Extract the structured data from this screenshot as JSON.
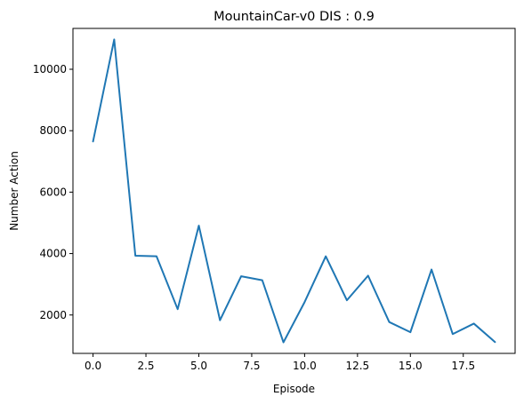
{
  "chart_data": {
    "type": "line",
    "title": "MountainCar-v0 DIS : 0.9",
    "xlabel": "Episode",
    "ylabel": "Number Action",
    "xlim": [
      -0.95,
      19.95
    ],
    "ylim": [
      750,
      11330
    ],
    "xticks": [
      0.0,
      2.5,
      5.0,
      7.5,
      10.0,
      12.5,
      15.0,
      17.5
    ],
    "xtick_labels": [
      "0.0",
      "2.5",
      "5.0",
      "7.5",
      "10.0",
      "12.5",
      "15.0",
      "17.5"
    ],
    "yticks": [
      2000,
      4000,
      6000,
      8000,
      10000
    ],
    "ytick_labels": [
      "2000",
      "4000",
      "6000",
      "8000",
      "10000"
    ],
    "grid": false,
    "series": [
      {
        "color": "#1f77b4",
        "x": [
          0,
          1,
          2,
          3,
          4,
          5,
          6,
          7,
          8,
          9,
          10,
          11,
          12,
          13,
          14,
          15,
          16,
          17,
          18,
          19
        ],
        "values": [
          7650,
          10970,
          3930,
          3910,
          2190,
          4910,
          1830,
          3260,
          3130,
          1110,
          2420,
          3910,
          2480,
          3280,
          1770,
          1440,
          3480,
          1380,
          1720,
          1120
        ]
      }
    ]
  }
}
